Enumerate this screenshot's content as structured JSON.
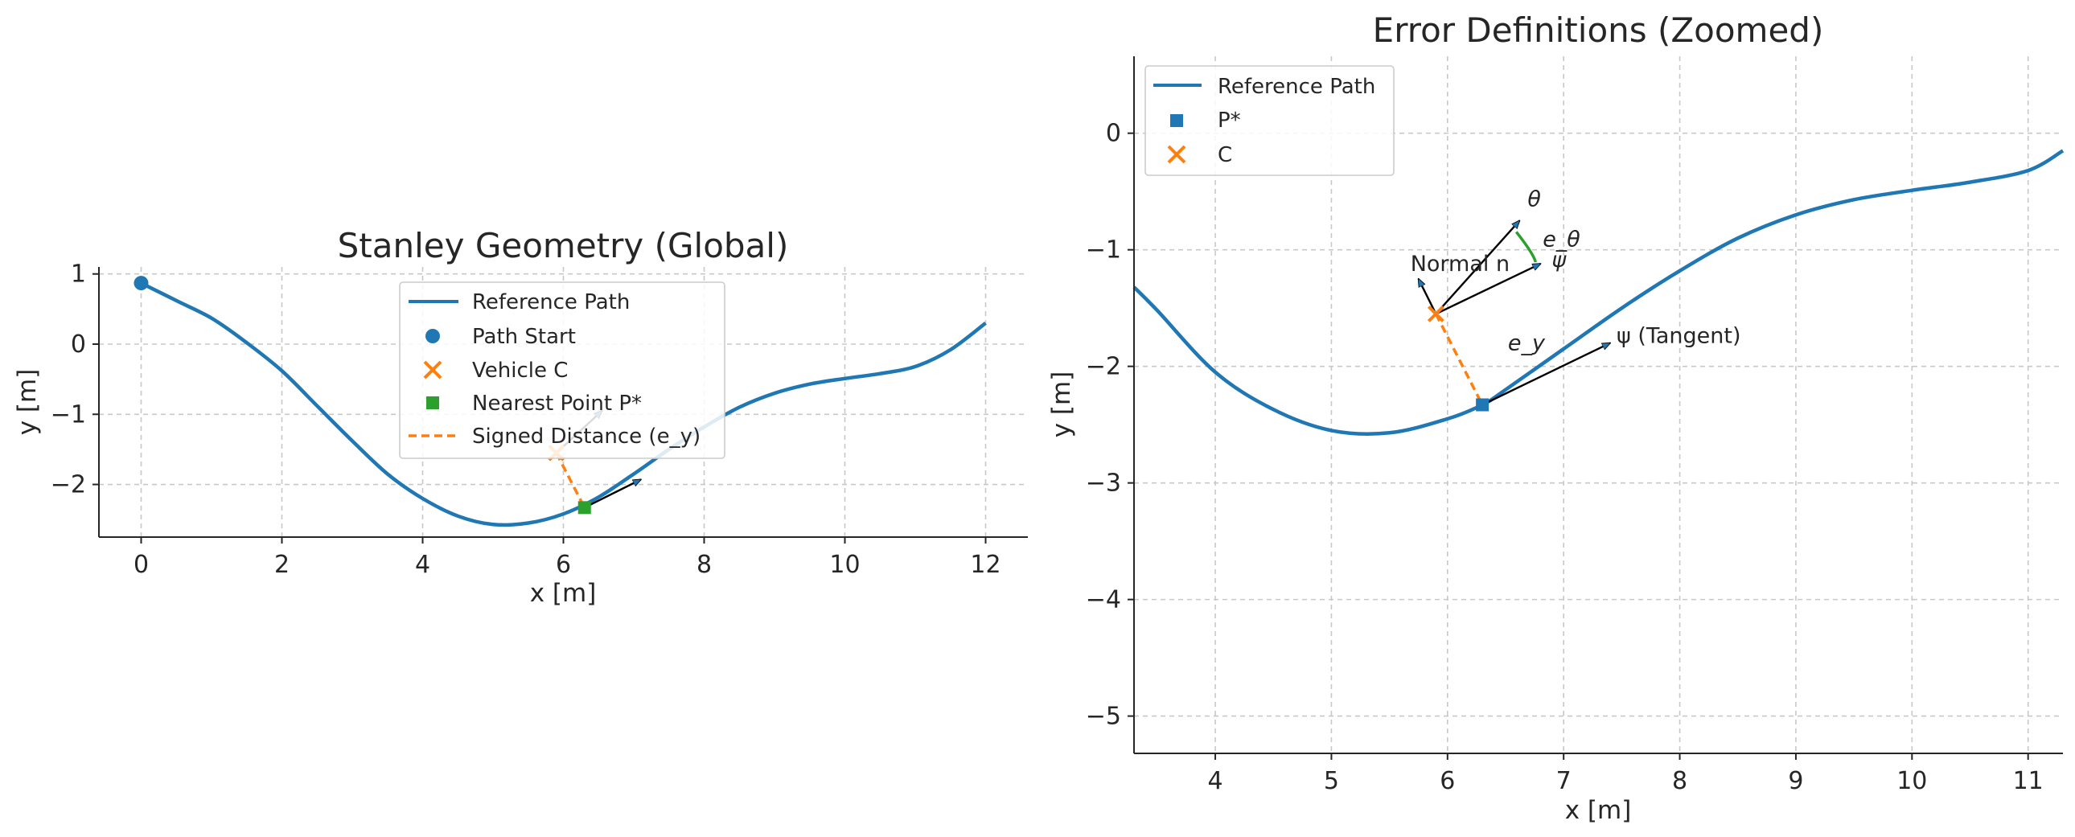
{
  "colors": {
    "path": "#1f77b4",
    "vehicle": "#ff7f0e",
    "nearest": "#2ca02c",
    "heading_error_arc": "#2ca02c",
    "arrow_edge": "#000000"
  },
  "chart_data": [
    {
      "type": "line",
      "title": "Stanley Geometry (Global)",
      "xlabel": "x [m]",
      "ylabel": "y [m]",
      "xlim": [
        -0.6,
        12.6
      ],
      "ylim": [
        -2.75,
        1.1
      ],
      "xticks": [
        0,
        2,
        4,
        6,
        8,
        10,
        12
      ],
      "xtick_labels": [
        "0",
        "2",
        "4",
        "6",
        "8",
        "10",
        "12"
      ],
      "yticks": [
        1,
        0,
        -1,
        -2
      ],
      "ytick_labels": [
        "1",
        "0",
        "−1",
        "−2"
      ],
      "grid": true,
      "legend_position": "upper center",
      "legend": [
        "Reference Path",
        "Path Start",
        "Vehicle C",
        "Nearest Point P*",
        "Signed Distance (e_y)"
      ],
      "series": [
        {
          "name": "Reference Path",
          "kind": "line",
          "x": [
            0,
            0.5,
            1,
            1.5,
            2,
            2.5,
            3,
            3.5,
            4,
            4.5,
            5,
            5.5,
            6,
            6.5,
            7,
            7.5,
            8,
            8.5,
            9,
            9.5,
            10,
            10.5,
            11,
            11.5,
            12
          ],
          "y": [
            0.87,
            0.62,
            0.37,
            0.02,
            -0.38,
            -0.88,
            -1.38,
            -1.85,
            -2.2,
            -2.45,
            -2.57,
            -2.55,
            -2.42,
            -2.18,
            -1.85,
            -1.5,
            -1.18,
            -0.9,
            -0.7,
            -0.57,
            -0.49,
            -0.42,
            -0.32,
            -0.08,
            0.3
          ]
        },
        {
          "name": "Path Start",
          "kind": "point",
          "x": [
            0
          ],
          "y": [
            0.87
          ]
        },
        {
          "name": "Vehicle C",
          "kind": "point",
          "x": [
            5.9
          ],
          "y": [
            -1.55
          ]
        },
        {
          "name": "Nearest Point P*",
          "kind": "point",
          "x": [
            6.3
          ],
          "y": [
            -2.33
          ]
        },
        {
          "name": "Signed Distance (e_y)",
          "kind": "line",
          "x": [
            5.9,
            6.3
          ],
          "y": [
            -1.55,
            -2.33
          ]
        }
      ],
      "arrows": [
        {
          "from": [
            6.3,
            -2.33
          ],
          "to": [
            7.1,
            -1.93
          ],
          "label": ""
        },
        {
          "from": [
            5.9,
            -1.55
          ],
          "to": [
            6.55,
            -0.95
          ],
          "label": ""
        }
      ]
    },
    {
      "type": "line",
      "title": "Error Definitions (Zoomed)",
      "xlabel": "x [m]",
      "ylabel": "y [m]",
      "xlim": [
        3.3,
        11.3
      ],
      "ylim": [
        -5.32,
        0.66
      ],
      "xticks": [
        4,
        5,
        6,
        7,
        8,
        9,
        10,
        11
      ],
      "xtick_labels": [
        "4",
        "5",
        "6",
        "7",
        "8",
        "9",
        "10",
        "11"
      ],
      "yticks": [
        0,
        -1,
        -2,
        -3,
        -4,
        -5
      ],
      "ytick_labels": [
        "0",
        "−1",
        "−2",
        "−3",
        "−4",
        "−5"
      ],
      "grid": true,
      "legend_position": "upper left",
      "legend": [
        "Reference Path",
        "P*",
        "C"
      ],
      "series": [
        {
          "name": "Reference Path",
          "kind": "line",
          "x": [
            3.3,
            3.5,
            4,
            4.5,
            5,
            5.5,
            6,
            6.3,
            6.5,
            7,
            7.5,
            8,
            8.5,
            9,
            9.5,
            10,
            10.5,
            11,
            11.3
          ],
          "y": [
            -1.32,
            -1.52,
            -2.05,
            -2.37,
            -2.55,
            -2.57,
            -2.45,
            -2.33,
            -2.2,
            -1.85,
            -1.5,
            -1.18,
            -0.9,
            -0.7,
            -0.57,
            -0.49,
            -0.42,
            -0.32,
            -0.15
          ]
        },
        {
          "name": "P*",
          "kind": "point",
          "x": [
            6.3
          ],
          "y": [
            -2.33
          ]
        },
        {
          "name": "C",
          "kind": "point",
          "x": [
            5.9
          ],
          "y": [
            -1.55
          ]
        },
        {
          "name": "e_y",
          "kind": "line",
          "x": [
            5.9,
            6.3
          ],
          "y": [
            -1.55,
            -2.33
          ]
        }
      ],
      "arrows": [
        {
          "from": [
            6.3,
            -2.33
          ],
          "to": [
            7.4,
            -1.8
          ],
          "label": "ψ (Tangent)"
        },
        {
          "from": [
            5.9,
            -1.55
          ],
          "to": [
            5.75,
            -1.25
          ],
          "label": "Normal n"
        },
        {
          "from": [
            5.9,
            -1.55
          ],
          "to": [
            6.62,
            -0.75
          ],
          "label": "θ"
        },
        {
          "from": [
            5.9,
            -1.55
          ],
          "to": [
            6.8,
            -1.12
          ],
          "label": "ψ"
        }
      ],
      "annotations": [
        "e_y",
        "e_θ"
      ]
    }
  ]
}
